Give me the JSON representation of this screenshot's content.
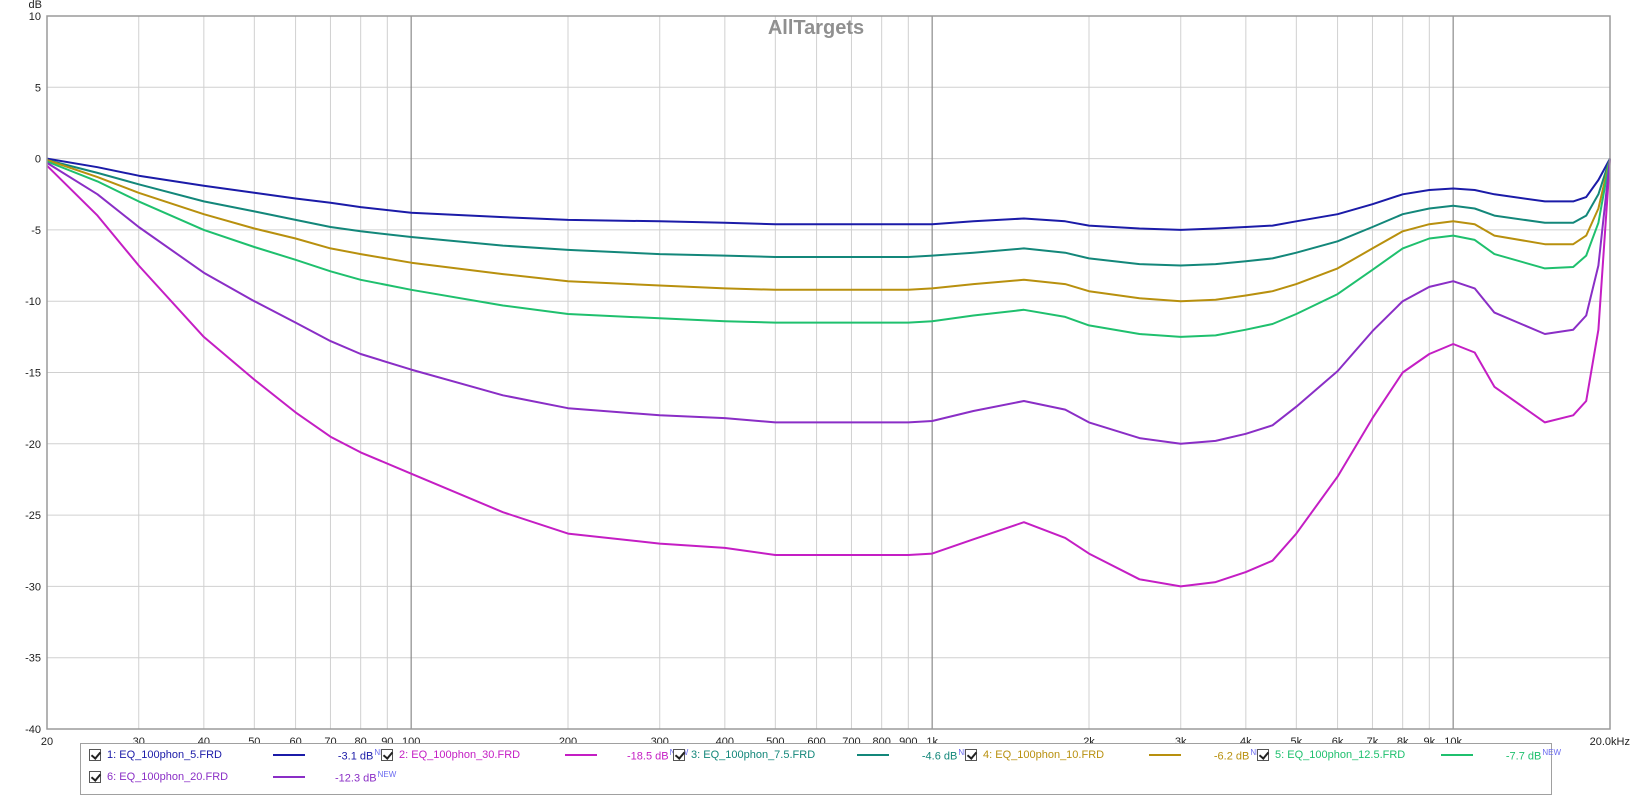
{
  "chart_data": {
    "type": "line",
    "title": "AllTargets",
    "ylabel": "dB",
    "xunit": "Hz",
    "xscale": "log",
    "xlim": [
      20,
      20000
    ],
    "ylim": [
      -40,
      10
    ],
    "grid": true,
    "legend_position": "bottom",
    "y_ticks": [
      10,
      5,
      0,
      -5,
      -10,
      -15,
      -20,
      -25,
      -30,
      -35,
      -40
    ],
    "x_ticks": [
      {
        "value": 20,
        "label": "20"
      },
      {
        "value": 30,
        "label": "30"
      },
      {
        "value": 40,
        "label": "40"
      },
      {
        "value": 50,
        "label": "50"
      },
      {
        "value": 60,
        "label": "60"
      },
      {
        "value": 70,
        "label": "70"
      },
      {
        "value": 80,
        "label": "80"
      },
      {
        "value": 90,
        "label": "90"
      },
      {
        "value": 100,
        "label": "100"
      },
      {
        "value": 200,
        "label": "200"
      },
      {
        "value": 300,
        "label": "300"
      },
      {
        "value": 400,
        "label": "400"
      },
      {
        "value": 500,
        "label": "500"
      },
      {
        "value": 600,
        "label": "600"
      },
      {
        "value": 700,
        "label": "700"
      },
      {
        "value": 800,
        "label": "800"
      },
      {
        "value": 900,
        "label": "900"
      },
      {
        "value": 1000,
        "label": "1k"
      },
      {
        "value": 2000,
        "label": "2k"
      },
      {
        "value": 3000,
        "label": "3k"
      },
      {
        "value": 4000,
        "label": "4k"
      },
      {
        "value": 5000,
        "label": "5k"
      },
      {
        "value": 6000,
        "label": "6k"
      },
      {
        "value": 7000,
        "label": "7k"
      },
      {
        "value": 8000,
        "label": "8k"
      },
      {
        "value": 9000,
        "label": "9k"
      },
      {
        "value": 10000,
        "label": "10k"
      },
      {
        "value": 20000,
        "label": "20.0kHz"
      }
    ],
    "x": [
      20,
      25,
      30,
      40,
      50,
      60,
      70,
      80,
      100,
      150,
      200,
      300,
      400,
      500,
      700,
      900,
      1000,
      1200,
      1500,
      1800,
      2000,
      2500,
      3000,
      3500,
      4000,
      4500,
      5000,
      6000,
      7000,
      8000,
      9000,
      10000,
      11000,
      12000,
      15000,
      17000,
      18000,
      19000,
      20000
    ],
    "series": [
      {
        "name": "1: EQ_100phon_5.FRD",
        "color": "#1b1ba8",
        "level": "-3.1 dB",
        "badge": "NEW",
        "values": [
          0,
          -0.6,
          -1.2,
          -1.9,
          -2.4,
          -2.8,
          -3.1,
          -3.4,
          -3.8,
          -4.1,
          -4.3,
          -4.4,
          -4.5,
          -4.6,
          -4.6,
          -4.6,
          -4.6,
          -4.4,
          -4.2,
          -4.4,
          -4.7,
          -4.9,
          -5.0,
          -4.9,
          -4.8,
          -4.7,
          -4.4,
          -3.9,
          -3.2,
          -2.5,
          -2.2,
          -2.1,
          -2.2,
          -2.5,
          -3.0,
          -3.0,
          -2.7,
          -1.5,
          0
        ]
      },
      {
        "name": "2: EQ_100phon_30.FRD",
        "color": "#c41ec4",
        "level": "-18.5 dB",
        "badge": "NEW",
        "values": [
          -0.5,
          -4.0,
          -7.5,
          -12.5,
          -15.5,
          -17.8,
          -19.5,
          -20.6,
          -22.1,
          -24.8,
          -26.3,
          -27.0,
          -27.3,
          -27.8,
          -27.8,
          -27.8,
          -27.7,
          -26.7,
          -25.5,
          -26.6,
          -27.7,
          -29.5,
          -30.0,
          -29.7,
          -29.0,
          -28.2,
          -26.3,
          -22.3,
          -18.2,
          -15.0,
          -13.7,
          -13.0,
          -13.6,
          -16.0,
          -18.5,
          -18.0,
          -17.0,
          -12.0,
          0
        ]
      },
      {
        "name": "3: EQ_100phon_7.5.FRD",
        "color": "#13877a",
        "level": "-4.6 dB",
        "badge": "NEW",
        "values": [
          -0.1,
          -1.0,
          -1.8,
          -3.0,
          -3.7,
          -4.3,
          -4.8,
          -5.1,
          -5.5,
          -6.1,
          -6.4,
          -6.7,
          -6.8,
          -6.9,
          -6.9,
          -6.9,
          -6.8,
          -6.6,
          -6.3,
          -6.6,
          -7.0,
          -7.4,
          -7.5,
          -7.4,
          -7.2,
          -7.0,
          -6.6,
          -5.8,
          -4.8,
          -3.9,
          -3.5,
          -3.3,
          -3.5,
          -4.0,
          -4.5,
          -4.5,
          -4.0,
          -2.5,
          0
        ]
      },
      {
        "name": "4: EQ_100phon_10.FRD",
        "color": "#b8900e",
        "level": "-6.2 dB",
        "badge": "NEW",
        "values": [
          -0.1,
          -1.3,
          -2.4,
          -3.9,
          -4.9,
          -5.6,
          -6.3,
          -6.7,
          -7.3,
          -8.1,
          -8.6,
          -8.9,
          -9.1,
          -9.2,
          -9.2,
          -9.2,
          -9.1,
          -8.8,
          -8.5,
          -8.8,
          -9.3,
          -9.8,
          -10.0,
          -9.9,
          -9.6,
          -9.3,
          -8.8,
          -7.7,
          -6.3,
          -5.1,
          -4.6,
          -4.4,
          -4.6,
          -5.4,
          -6.0,
          -6.0,
          -5.4,
          -3.5,
          0
        ]
      },
      {
        "name": "5: EQ_100phon_12.5.FRD",
        "color": "#1fc06e",
        "level": "-7.7 dB",
        "badge": "NEW",
        "values": [
          -0.2,
          -1.6,
          -3.0,
          -5.0,
          -6.2,
          -7.1,
          -7.9,
          -8.5,
          -9.2,
          -10.3,
          -10.9,
          -11.2,
          -11.4,
          -11.5,
          -11.5,
          -11.5,
          -11.4,
          -11.0,
          -10.6,
          -11.1,
          -11.7,
          -12.3,
          -12.5,
          -12.4,
          -12.0,
          -11.6,
          -10.9,
          -9.5,
          -7.8,
          -6.3,
          -5.6,
          -5.4,
          -5.7,
          -6.7,
          -7.7,
          -7.6,
          -6.8,
          -4.5,
          0
        ]
      },
      {
        "name": "6: EQ_100phon_20.FRD",
        "color": "#8a2ec6",
        "level": "-12.3 dB",
        "badge": "NEW",
        "values": [
          -0.3,
          -2.5,
          -4.8,
          -8.0,
          -10.0,
          -11.5,
          -12.8,
          -13.7,
          -14.8,
          -16.6,
          -17.5,
          -18.0,
          -18.2,
          -18.5,
          -18.5,
          -18.5,
          -18.4,
          -17.7,
          -17.0,
          -17.6,
          -18.5,
          -19.6,
          -20.0,
          -19.8,
          -19.3,
          -18.7,
          -17.4,
          -14.9,
          -12.1,
          -10.0,
          -9.0,
          -8.6,
          -9.1,
          -10.8,
          -12.3,
          -12.0,
          -11.0,
          -7.5,
          0
        ]
      }
    ]
  }
}
